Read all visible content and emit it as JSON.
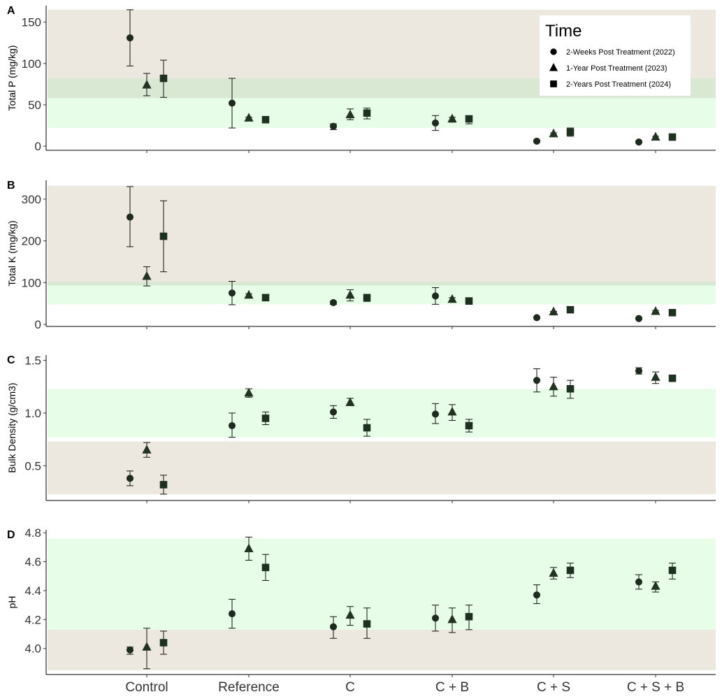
{
  "chart_data": {
    "type": "scatter",
    "categories": [
      "Control",
      "Reference",
      "C",
      "C + B",
      "C + S",
      "C + S + B"
    ],
    "legend": {
      "title": "Time",
      "placement": "top-right",
      "entries": [
        {
          "label": "2-Weeks Post Treatment (2022)",
          "marker": "circle"
        },
        {
          "label": "1-Year Post Treatment (2023)",
          "marker": "triangle"
        },
        {
          "label": "2-Years Post Treatment (2024)",
          "marker": "square"
        }
      ]
    },
    "colors": {
      "series": [
        "#1e2a1e",
        "#223322",
        "#1e3020"
      ],
      "band_tan": "#ede8df",
      "band_green": "#e8fde8",
      "band_overlap": "#d9e8d2"
    },
    "panels": [
      {
        "letter": "A",
        "ylabel": "Total P (mg/kg)",
        "ylim": [
          -5,
          170
        ],
        "yticks": [
          0,
          50,
          100,
          150
        ],
        "tick_labels": [
          "0",
          "50",
          "100",
          "150"
        ],
        "bands": [
          {
            "from": 58,
            "to": 165,
            "color": "tan"
          },
          {
            "from": 22,
            "to": 82,
            "color": "green"
          },
          {
            "from": 58,
            "to": 82,
            "color": "overlap"
          }
        ],
        "series": [
          {
            "marker": "circle",
            "values": [
              131,
              52,
              24,
              28,
              6,
              5
            ],
            "lower": [
              97,
              22,
              20,
              19,
              5,
              4
            ],
            "upper": [
              165,
              82,
              27,
              37,
              7,
              6
            ]
          },
          {
            "marker": "triangle",
            "values": [
              74,
              34,
              38,
              33,
              15,
              11
            ],
            "lower": [
              61,
              31,
              32,
              29,
              13,
              9
            ],
            "upper": [
              88,
              35,
              45,
              35,
              16,
              12
            ]
          },
          {
            "marker": "square",
            "values": [
              82,
              32,
              40,
              33,
              17,
              11
            ],
            "lower": [
              59,
              30,
              33,
              27,
              12,
              10
            ],
            "upper": [
              104,
              33,
              46,
              36,
              22,
              12
            ]
          }
        ]
      },
      {
        "letter": "B",
        "ylabel": "Total K (mg/kg)",
        "ylim": [
          -5,
          345
        ],
        "yticks": [
          0,
          100,
          200,
          300
        ],
        "tick_labels": [
          "0",
          "100",
          "200",
          "300"
        ],
        "bands": [
          {
            "from": 93,
            "to": 332,
            "color": "tan"
          },
          {
            "from": 48,
            "to": 93,
            "color": "green"
          },
          {
            "from": 93,
            "to": 102,
            "color": "overlap"
          }
        ],
        "series": [
          {
            "marker": "circle",
            "values": [
              257,
              75,
              52,
              68,
              16,
              14
            ],
            "lower": [
              186,
              47,
              48,
              48,
              15,
              13
            ],
            "upper": [
              330,
              103,
              55,
              88,
              17,
              15
            ]
          },
          {
            "marker": "triangle",
            "values": [
              115,
              70,
              70,
              60,
              30,
              31
            ],
            "lower": [
              92,
              65,
              56,
              55,
              28,
              29
            ],
            "upper": [
              138,
              73,
              83,
              64,
              31,
              33
            ]
          },
          {
            "marker": "square",
            "values": [
              211,
              64,
              64,
              56,
              35,
              28
            ],
            "lower": [
              126,
              63,
              55,
              48,
              34,
              26
            ],
            "upper": [
              296,
              65,
              72,
              60,
              37,
              30
            ]
          }
        ]
      },
      {
        "letter": "C",
        "ylabel": "Bulk Density (g/cm3)",
        "ylim": [
          0.17,
          1.55
        ],
        "yticks": [
          0.5,
          1.0,
          1.5
        ],
        "tick_labels": [
          "0.5",
          "1.0",
          "1.5"
        ],
        "bands": [
          {
            "from": 0.23,
            "to": 0.73,
            "color": "tan"
          },
          {
            "from": 0.77,
            "to": 1.23,
            "color": "green"
          }
        ],
        "series": [
          {
            "marker": "circle",
            "values": [
              0.38,
              0.88,
              1.01,
              0.99,
              1.31,
              1.4
            ],
            "lower": [
              0.31,
              0.77,
              0.95,
              0.9,
              1.2,
              1.37
            ],
            "upper": [
              0.45,
              1.0,
              1.07,
              1.09,
              1.42,
              1.43
            ]
          },
          {
            "marker": "triangle",
            "values": [
              0.65,
              1.19,
              1.1,
              1.01,
              1.25,
              1.34
            ],
            "lower": [
              0.58,
              1.15,
              1.07,
              0.93,
              1.16,
              1.28
            ],
            "upper": [
              0.72,
              1.23,
              1.14,
              1.08,
              1.34,
              1.39
            ]
          },
          {
            "marker": "square",
            "values": [
              0.32,
              0.95,
              0.86,
              0.88,
              1.23,
              1.33
            ],
            "lower": [
              0.23,
              0.89,
              0.78,
              0.82,
              1.14,
              1.33
            ],
            "upper": [
              0.41,
              1.01,
              0.94,
              0.94,
              1.31,
              1.33
            ]
          }
        ]
      },
      {
        "letter": "D",
        "ylabel": "pH",
        "ylim": [
          3.82,
          4.82
        ],
        "yticks": [
          4.0,
          4.2,
          4.4,
          4.6,
          4.8
        ],
        "tick_labels": [
          "4.0",
          "4.2",
          "4.4",
          "4.6",
          "4.8"
        ],
        "bands": [
          {
            "from": 3.85,
            "to": 4.13,
            "color": "tan"
          },
          {
            "from": 4.13,
            "to": 4.76,
            "color": "green"
          }
        ],
        "series": [
          {
            "marker": "circle",
            "values": [
              3.99,
              4.24,
              4.15,
              4.21,
              4.37,
              4.46
            ],
            "lower": [
              3.96,
              4.14,
              4.07,
              4.12,
              4.31,
              4.41
            ],
            "upper": [
              4.01,
              4.34,
              4.22,
              4.3,
              4.44,
              4.51
            ]
          },
          {
            "marker": "triangle",
            "values": [
              4.01,
              4.69,
              4.23,
              4.2,
              4.52,
              4.43
            ],
            "lower": [
              3.86,
              4.61,
              4.16,
              4.11,
              4.48,
              4.39
            ],
            "upper": [
              4.14,
              4.77,
              4.29,
              4.28,
              4.56,
              4.46
            ]
          },
          {
            "marker": "square",
            "values": [
              4.04,
              4.56,
              4.17,
              4.22,
              4.54,
              4.54
            ],
            "lower": [
              3.96,
              4.47,
              4.07,
              4.13,
              4.49,
              4.48
            ],
            "upper": [
              4.12,
              4.65,
              4.28,
              4.3,
              4.59,
              4.59
            ]
          }
        ]
      }
    ]
  }
}
